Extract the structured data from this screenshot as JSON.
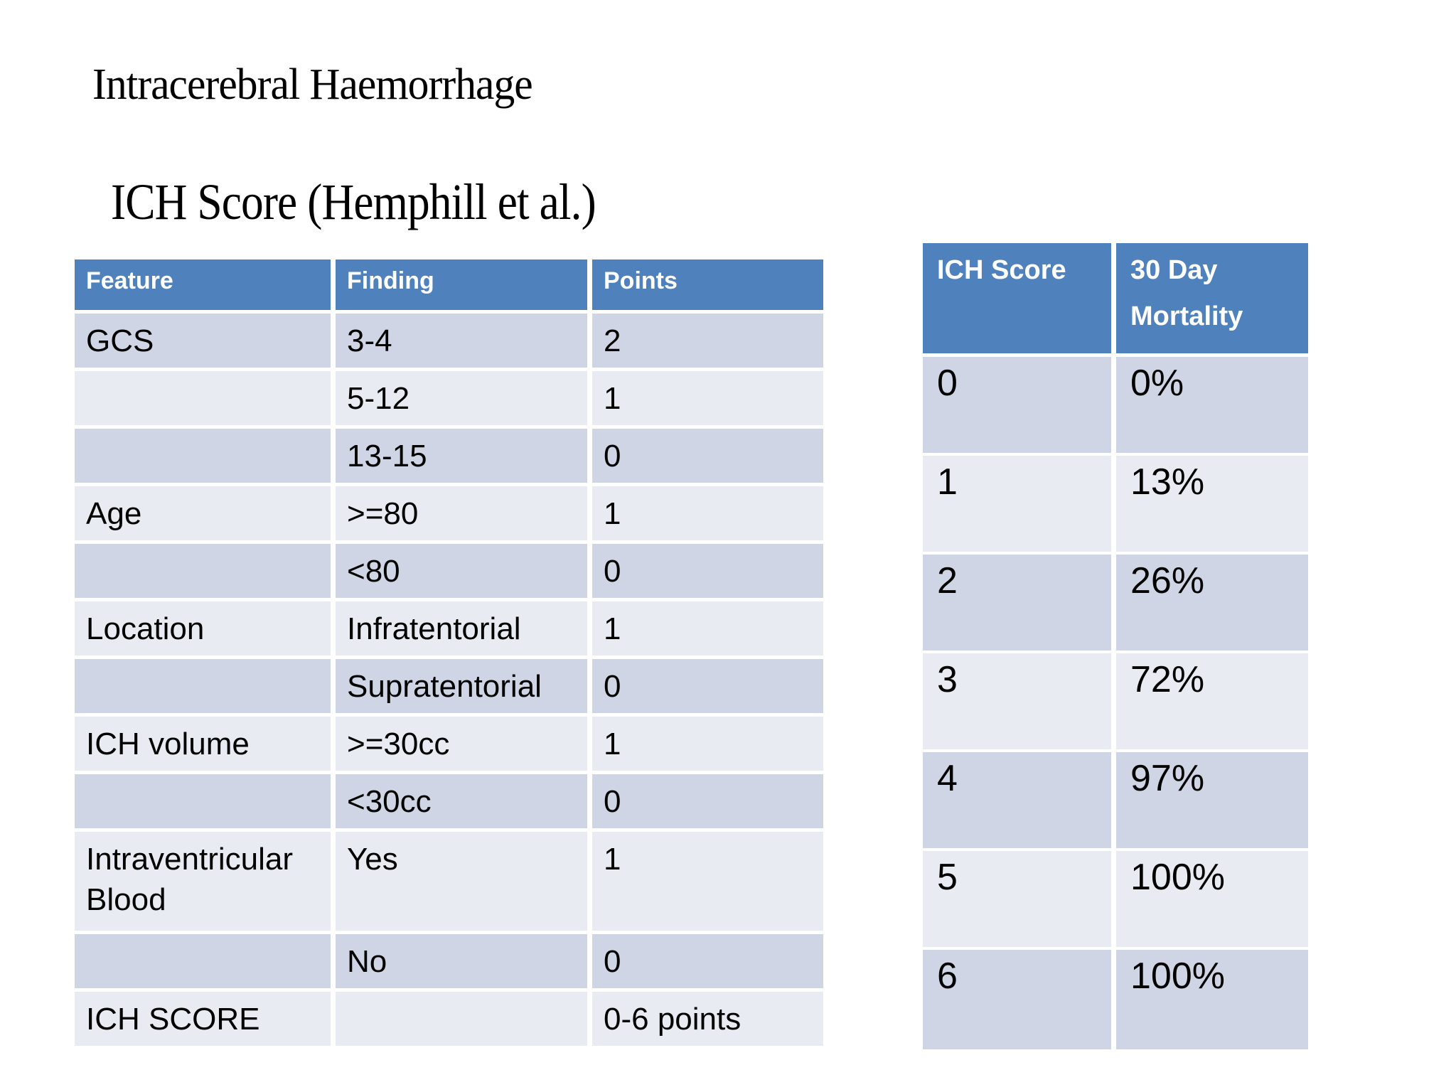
{
  "title": "Intracerebral Haemorrhage",
  "subtitle": "ICH Score (Hemphill et al.)",
  "colors": {
    "header_blue": "#4f81bd",
    "band_dark": "#cfd5e4",
    "band_light": "#e9ebf3",
    "background": "#ffffff",
    "header_text": "#ffffff",
    "body_text": "#000000"
  },
  "score_table": {
    "headers": {
      "feature": "Feature",
      "finding": "Finding",
      "points": "Points"
    },
    "rows": [
      {
        "feature": "GCS",
        "finding": "3-4",
        "points": "2"
      },
      {
        "feature": "",
        "finding": "5-12",
        "points": "1"
      },
      {
        "feature": "",
        "finding": "13-15",
        "points": "0"
      },
      {
        "feature": "Age",
        "finding": ">=80",
        "points": "1"
      },
      {
        "feature": "",
        "finding": "<80",
        "points": "0"
      },
      {
        "feature": "Location",
        "finding": "Infratentorial",
        "points": "1"
      },
      {
        "feature": "",
        "finding": "Supratentorial",
        "points": "0"
      },
      {
        "feature": "ICH volume",
        "finding": ">=30cc",
        "points": "1"
      },
      {
        "feature": "",
        "finding": "<30cc",
        "points": "0"
      },
      {
        "feature": "Intraventricular Blood",
        "finding": "Yes",
        "points": "1"
      },
      {
        "feature": "",
        "finding": "No",
        "points": "0"
      },
      {
        "feature": "ICH SCORE",
        "finding": "",
        "points": "0-6 points"
      }
    ]
  },
  "mortality_table": {
    "headers": {
      "score": "ICH Score",
      "mortality": "30 Day Mortality"
    },
    "rows": [
      {
        "score": "0",
        "mortality": "0%"
      },
      {
        "score": "1",
        "mortality": "13%"
      },
      {
        "score": "2",
        "mortality": "26%"
      },
      {
        "score": "3",
        "mortality": "72%"
      },
      {
        "score": "4",
        "mortality": "97%"
      },
      {
        "score": "5",
        "mortality": "100%"
      },
      {
        "score": "6",
        "mortality": "100%"
      }
    ]
  }
}
